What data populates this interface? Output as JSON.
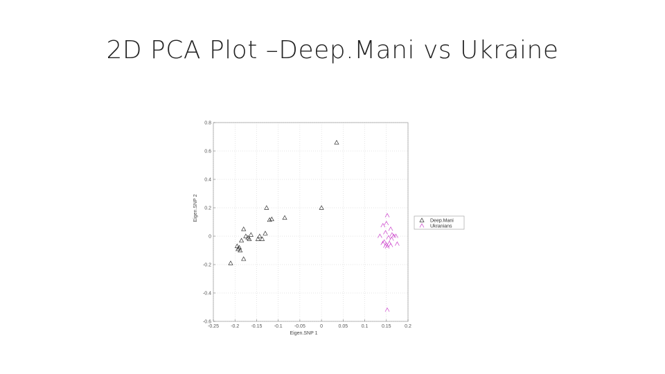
{
  "slide": {
    "title": "2D PCA Plot –Deep.Mani vs Ukraine"
  },
  "chart_data": {
    "type": "scatter",
    "title": "",
    "xlabel": "Eigen.SNP 1",
    "ylabel": "Eigen.SNP 2",
    "xlim": [
      -0.25,
      0.2
    ],
    "ylim": [
      -0.6,
      0.8
    ],
    "x_ticks": [
      -0.25,
      -0.2,
      -0.15,
      -0.1,
      -0.05,
      0,
      0.05,
      0.1,
      0.15,
      0.2
    ],
    "x_tick_labels": [
      "-0.25",
      "-0.2",
      "-0.15",
      "-0.1",
      "-0.05",
      "0",
      "0.05",
      "0.1",
      "0.15",
      "0.2"
    ],
    "y_ticks": [
      0.8,
      0.6,
      0.4,
      0.2,
      0,
      -0.2,
      -0.4,
      -0.6
    ],
    "y_tick_labels": [
      "0.8",
      "0.6",
      "0.4",
      "0.2",
      "0",
      "-0.2",
      "-0.4",
      "-0.6"
    ],
    "grid": true,
    "legend_position": "right",
    "series": [
      {
        "name": "Deep.Mani",
        "marker": "triangle-up",
        "color": "#333333",
        "points": [
          [
            0.035,
            0.66
          ],
          [
            0.0,
            0.2
          ],
          [
            -0.127,
            0.2
          ],
          [
            -0.085,
            0.13
          ],
          [
            -0.115,
            0.12
          ],
          [
            -0.12,
            0.115
          ],
          [
            -0.13,
            0.02
          ],
          [
            -0.143,
            0.0
          ],
          [
            -0.137,
            -0.02
          ],
          [
            -0.147,
            -0.02
          ],
          [
            -0.18,
            0.05
          ],
          [
            -0.163,
            0.01
          ],
          [
            -0.17,
            -0.01
          ],
          [
            -0.175,
            0.0
          ],
          [
            -0.167,
            -0.02
          ],
          [
            -0.185,
            -0.03
          ],
          [
            -0.19,
            -0.08
          ],
          [
            -0.193,
            -0.09
          ],
          [
            -0.188,
            -0.1
          ],
          [
            -0.195,
            -0.07
          ],
          [
            -0.18,
            -0.16
          ],
          [
            -0.21,
            -0.19
          ]
        ]
      },
      {
        "name": "Ukranians",
        "marker": "caret",
        "color": "#cc44cc",
        "points": [
          [
            0.152,
            0.145
          ],
          [
            0.142,
            0.075
          ],
          [
            0.15,
            0.09
          ],
          [
            0.16,
            0.05
          ],
          [
            0.148,
            0.025
          ],
          [
            0.135,
            0.0
          ],
          [
            0.163,
            0.01
          ],
          [
            0.167,
            0.0
          ],
          [
            0.155,
            -0.01
          ],
          [
            0.162,
            -0.02
          ],
          [
            0.172,
            0.0
          ],
          [
            0.145,
            -0.04
          ],
          [
            0.15,
            -0.06
          ],
          [
            0.157,
            -0.05
          ],
          [
            0.148,
            -0.07
          ],
          [
            0.152,
            -0.075
          ],
          [
            0.16,
            -0.065
          ],
          [
            0.175,
            -0.055
          ],
          [
            0.142,
            -0.05
          ],
          [
            0.152,
            -0.52
          ]
        ]
      }
    ]
  }
}
